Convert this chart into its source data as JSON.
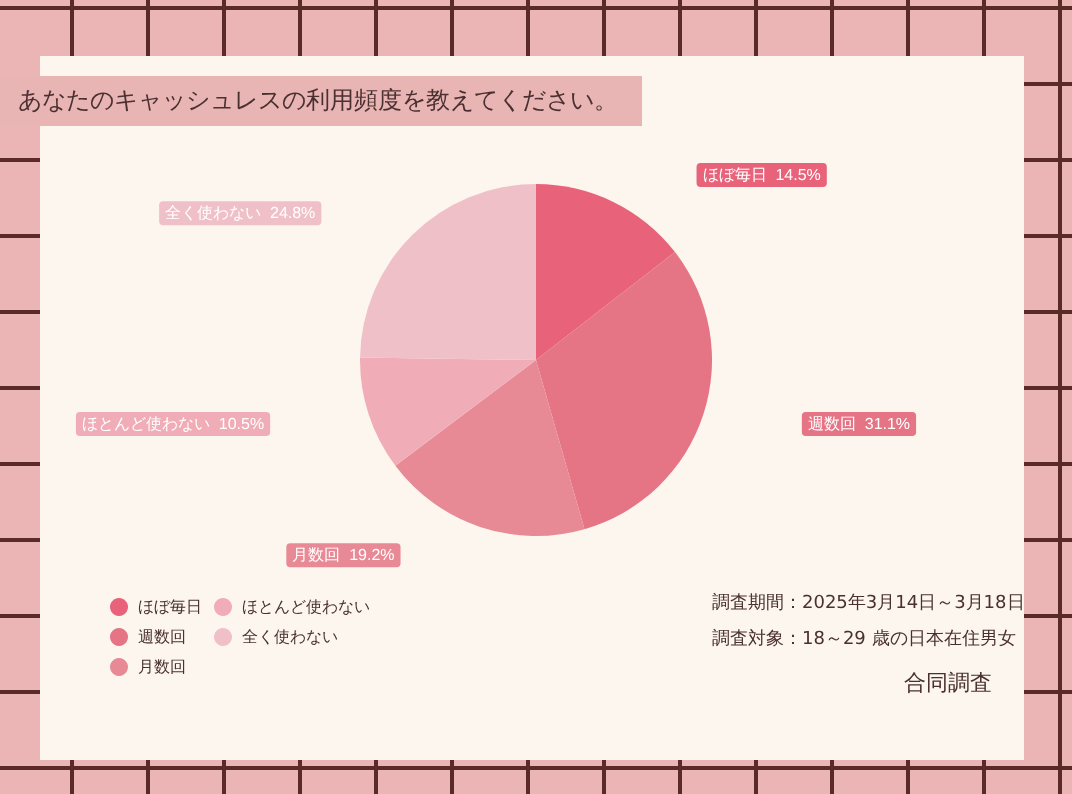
{
  "chart_data": {
    "type": "pie",
    "title": "あなたのキャッシュレスの利用頻度を教えてください。",
    "categories": [
      "ほぼ毎日",
      "週数回",
      "月数回",
      "ほとんど使わない",
      "全く使わない"
    ],
    "values": [
      14.5,
      31.1,
      19.2,
      10.5,
      24.8
    ],
    "colors": [
      "#e8637a",
      "#e57485",
      "#e88a96",
      "#f0adb7",
      "#f0c0c8"
    ],
    "value_labels": [
      "14.5%",
      "31.1%",
      "19.2%",
      "10.5%",
      "24.8%"
    ],
    "legend": "bottom left",
    "annotations": [
      "調査期間：2025年3月14日～3月18日",
      "調査対象：18～29 歳の日本在住男女",
      "合同調査"
    ]
  }
}
